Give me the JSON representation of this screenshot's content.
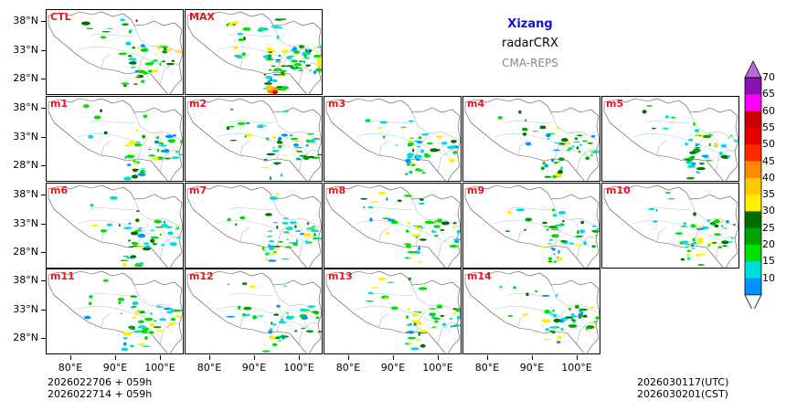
{
  "titles": {
    "region": "Xizang",
    "product": "radarCRX",
    "model": "CMA-REPS"
  },
  "panels": [
    "CTL",
    "MAX",
    "m1",
    "m2",
    "m3",
    "m4",
    "m5",
    "m6",
    "m7",
    "m8",
    "m9",
    "m10",
    "m11",
    "m12",
    "m13",
    "m14"
  ],
  "lat_labels": [
    "38°N",
    "33°N",
    "28°N"
  ],
  "lon_labels": [
    "80°E",
    "90°E",
    "100°E"
  ],
  "footer": {
    "init_utc": "2026022706  +  059h",
    "init_cst": "2026022714  +  059h",
    "valid_utc": "2026030117(UTC)",
    "valid_cst": "2026030201(CST)"
  },
  "colorbar": {
    "ticks": [
      "70",
      "65",
      "60",
      "55",
      "50",
      "45",
      "40",
      "35",
      "30",
      "25",
      "20",
      "15",
      "10"
    ],
    "colors": [
      "#b76ad8",
      "#8a12b0",
      "#ff00ff",
      "#c80000",
      "#e60000",
      "#ff2a00",
      "#ff8c00",
      "#ffc800",
      "#fff000",
      "#006e00",
      "#00a400",
      "#00e000",
      "#00dcdc",
      "#0091ff",
      "#ffffff"
    ]
  }
}
